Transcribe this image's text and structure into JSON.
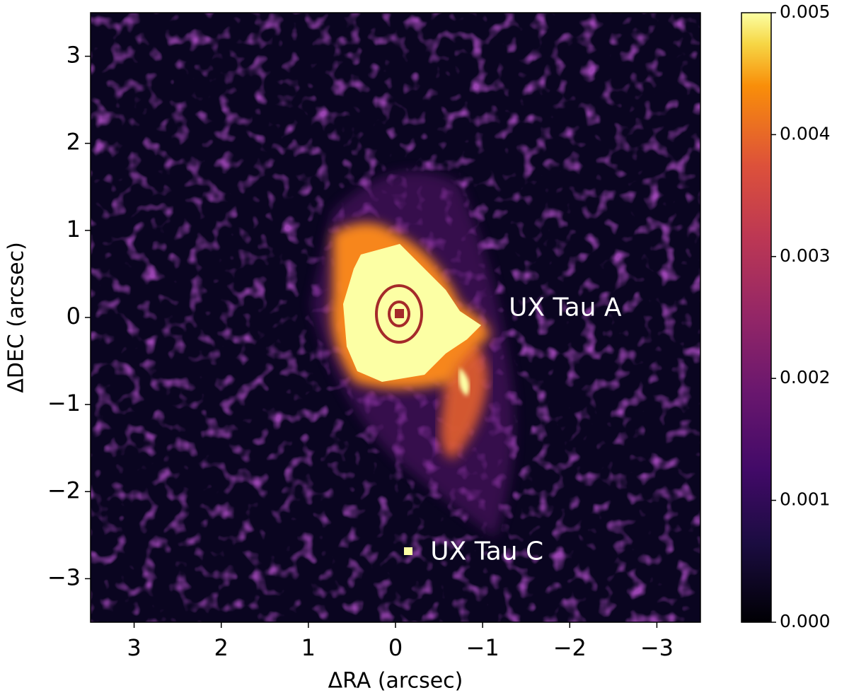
{
  "chart_data": {
    "type": "image",
    "xlabel": "ΔRA (arcsec)",
    "ylabel": "ΔDEC (arcsec)",
    "xlim": [
      3.5,
      -3.5
    ],
    "ylim": [
      -3.5,
      3.5
    ],
    "xticks": [
      3,
      2,
      1,
      0,
      {
        "value": -1,
        "label": "−1"
      },
      {
        "value": -2,
        "label": "−2"
      },
      {
        "value": -3,
        "label": "−3"
      }
    ],
    "yticks": [
      {
        "value": -3,
        "label": "−3"
      },
      {
        "value": -2,
        "label": "−2"
      },
      {
        "value": -1,
        "label": "−1"
      },
      0,
      1,
      2,
      3
    ],
    "colormap": "inferno",
    "colorbar": {
      "lim": [
        0,
        0.005
      ],
      "ticks": [
        {
          "value": 0,
          "label": "0.000"
        },
        {
          "value": 0.001,
          "label": "0.001"
        },
        {
          "value": 0.002,
          "label": "0.002"
        },
        {
          "value": 0.003,
          "label": "0.003"
        },
        {
          "value": 0.004,
          "label": "0.004"
        },
        {
          "value": 0.005,
          "label": "0.005"
        }
      ]
    },
    "annotations": [
      {
        "text": "UX Tau A",
        "x": -1.3,
        "y": 0.1
      },
      {
        "text": "UX Tau C",
        "x": -0.4,
        "y": -2.7
      }
    ]
  }
}
